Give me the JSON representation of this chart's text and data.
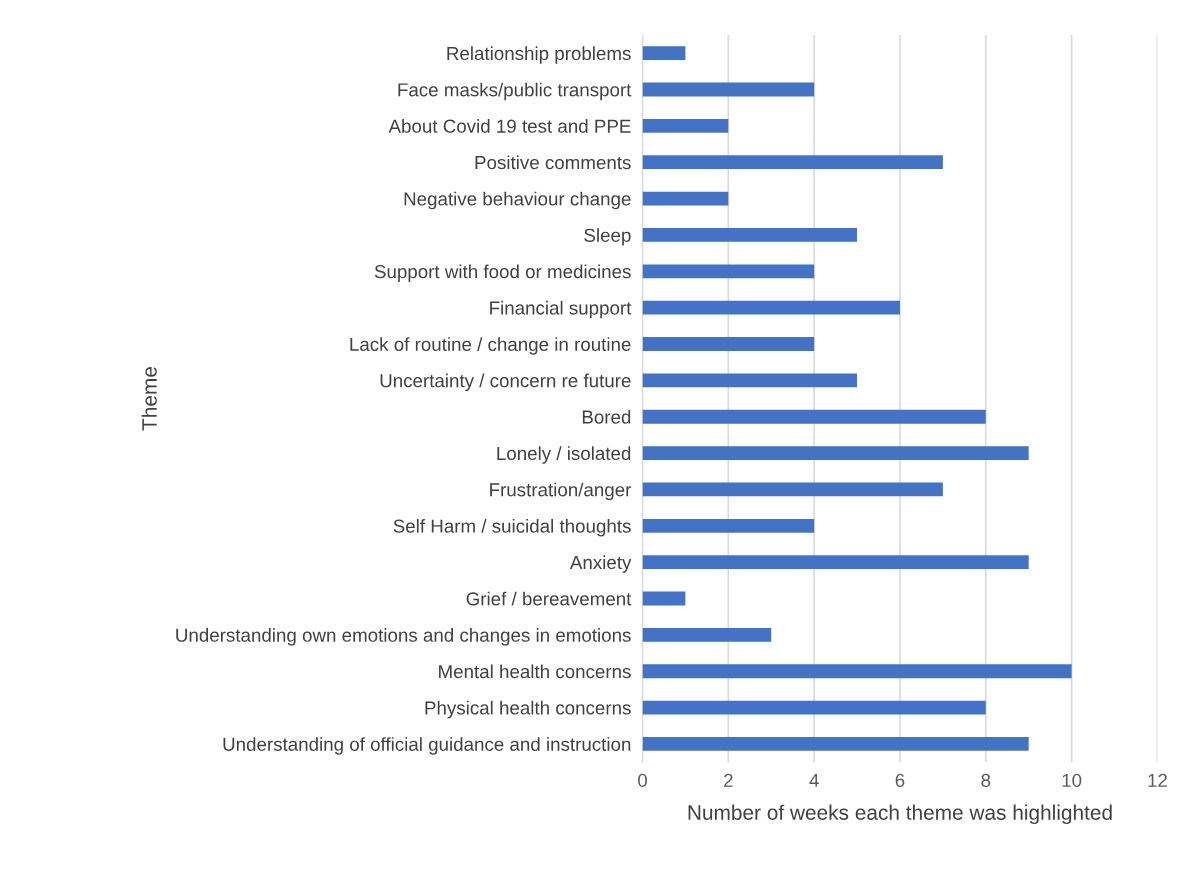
{
  "chart_data": {
    "type": "bar",
    "orientation": "horizontal",
    "xlabel": "Number of weeks each theme was highlighted",
    "ylabel": "Theme",
    "categories": [
      "Relationship problems",
      "Face masks/public transport",
      "About Covid 19 test and PPE",
      "Positive comments",
      "Negative behaviour change",
      "Sleep",
      "Support with food or medicines",
      "Financial support",
      "Lack of routine / change in routine",
      "Uncertainty / concern re future",
      "Bored",
      "Lonely / isolated",
      "Frustration/anger",
      "Self Harm / suicidal thoughts",
      "Anxiety",
      "Grief / bereavement",
      "Understanding own emotions and changes in emotions",
      "Mental health concerns",
      "Physical health concerns",
      "Understanding of official guidance and instruction"
    ],
    "values": [
      1,
      4,
      2,
      7,
      2,
      5,
      4,
      6,
      4,
      5,
      8,
      9,
      7,
      4,
      9,
      1,
      3,
      10,
      8,
      9
    ],
    "color": "#4472c4",
    "xlim": [
      0,
      12
    ],
    "xticks": [
      0,
      2,
      4,
      6,
      8,
      10,
      12
    ],
    "grid": "x"
  }
}
